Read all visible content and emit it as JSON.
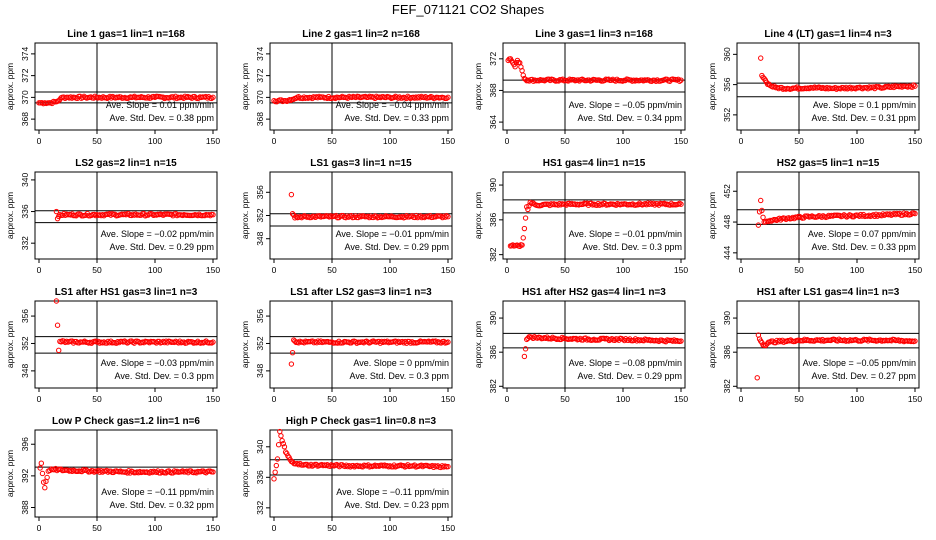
{
  "figure": {
    "title": "FEF_071121  CO2 Shapes"
  },
  "chart_data": [
    {
      "type": "scatter",
      "title": "Line 1 gas=1 lin=1 n=168",
      "ylabel": "approx. ppm",
      "xlim": [
        0,
        150
      ],
      "ylim": [
        367,
        375
      ],
      "yticks": [
        368,
        370,
        372,
        374
      ],
      "xticks": [
        0,
        50,
        100,
        150
      ],
      "ref_lines": [
        370.5,
        369.5
      ],
      "slope_text": "Ave. Slope =  0.01  ppm/min",
      "sd_text": "Ave. Std. Dev. =  0.38  ppm",
      "points": [
        [
          0,
          369.5
        ],
        [
          5,
          369.5
        ],
        [
          10,
          369.5
        ],
        [
          15,
          369.6
        ],
        [
          18,
          369.8
        ],
        [
          20,
          370
        ],
        [
          25,
          370
        ],
        [
          40,
          370
        ],
        [
          60,
          370
        ],
        [
          80,
          370
        ],
        [
          100,
          370
        ],
        [
          120,
          370
        ],
        [
          140,
          370
        ],
        [
          150,
          370
        ]
      ]
    },
    {
      "type": "scatter",
      "title": "Line 2 gas=1 lin=2 n=168",
      "ylabel": "approx. ppm",
      "xlim": [
        0,
        150
      ],
      "ylim": [
        367,
        375
      ],
      "yticks": [
        368,
        370,
        372,
        374
      ],
      "xticks": [
        0,
        50,
        100,
        150
      ],
      "ref_lines": [
        370.5,
        369.5
      ],
      "slope_text": "Ave. Slope = −0.04  ppm/min",
      "sd_text": "Ave. Std. Dev. =  0.33  ppm",
      "points": [
        [
          0,
          369.7
        ],
        [
          10,
          369.7
        ],
        [
          18,
          369.9
        ],
        [
          20,
          370
        ],
        [
          40,
          370
        ],
        [
          60,
          370
        ],
        [
          80,
          370
        ],
        [
          100,
          370
        ],
        [
          120,
          370
        ],
        [
          140,
          370
        ],
        [
          150,
          370
        ]
      ]
    },
    {
      "type": "scatter",
      "title": "Line 3 gas=1 lin=3 n=168",
      "ylabel": "approx. ppm",
      "xlim": [
        0,
        150
      ],
      "ylim": [
        363,
        374
      ],
      "yticks": [
        364,
        368,
        372
      ],
      "xticks": [
        0,
        50,
        100,
        150
      ],
      "ref_lines": [
        369.3,
        367.8
      ],
      "slope_text": "Ave. Slope = −0.05  ppm/min",
      "sd_text": "Ave. Std. Dev. =  0.34  ppm",
      "points": [
        [
          1,
          371.8
        ],
        [
          3,
          372
        ],
        [
          5,
          371.5
        ],
        [
          7,
          371
        ],
        [
          9,
          371.8
        ],
        [
          11,
          371.5
        ],
        [
          13,
          370.5
        ],
        [
          15,
          369.5
        ],
        [
          18,
          369.3
        ],
        [
          30,
          369.3
        ],
        [
          60,
          369.3
        ],
        [
          90,
          369.3
        ],
        [
          120,
          369.3
        ],
        [
          150,
          369.3
        ]
      ]
    },
    {
      "type": "scatter",
      "title": "Line 4 (LT) gas=1 lin=4 n=3",
      "ylabel": "approx. ppm",
      "xlim": [
        0,
        150
      ],
      "ylim": [
        350,
        361.5
      ],
      "yticks": [
        352,
        356,
        360
      ],
      "xticks": [
        0,
        50,
        100,
        150
      ],
      "ref_lines": [
        356.2,
        354.4
      ],
      "slope_text": "Ave. Slope =  0.1  ppm/min",
      "sd_text": "Ave. Std. Dev. =  0.31  ppm",
      "points": [
        [
          17,
          359.5
        ],
        [
          18,
          357.2
        ],
        [
          20,
          356.8
        ],
        [
          22,
          356.3
        ],
        [
          25,
          355.9
        ],
        [
          30,
          355.6
        ],
        [
          40,
          355.5
        ],
        [
          60,
          355.6
        ],
        [
          80,
          355.5
        ],
        [
          100,
          355.6
        ],
        [
          120,
          355.6
        ],
        [
          140,
          355.8
        ],
        [
          150,
          355.8
        ]
      ]
    },
    {
      "type": "scatter",
      "title": "LS2 gas=2 lin=1 n=15",
      "ylabel": "approx. ppm",
      "xlim": [
        0,
        150
      ],
      "ylim": [
        330,
        341
      ],
      "yticks": [
        332,
        336,
        340
      ],
      "xticks": [
        0,
        50,
        100,
        150
      ],
      "ref_lines": [
        336.1,
        334.6
      ],
      "slope_text": "Ave. Slope = −0.02  ppm/min",
      "sd_text": "Ave. Std. Dev. =  0.29  ppm",
      "points": [
        [
          15,
          336
        ],
        [
          16,
          335.1
        ],
        [
          18,
          335.6
        ],
        [
          25,
          335.6
        ],
        [
          50,
          335.6
        ],
        [
          75,
          335.6
        ],
        [
          100,
          335.6
        ],
        [
          125,
          335.6
        ],
        [
          150,
          335.6
        ]
      ]
    },
    {
      "type": "scatter",
      "title": "LS1 gas=3 lin=1 n=15",
      "ylabel": "approx. ppm",
      "xlim": [
        0,
        150
      ],
      "ylim": [
        344.5,
        359.5
      ],
      "yticks": [
        348,
        352,
        356
      ],
      "xticks": [
        0,
        50,
        100,
        150
      ],
      "ref_lines": [
        352.3,
        350.2
      ],
      "slope_text": "Ave. Slope = −0.01  ppm/min",
      "sd_text": "Ave. Std. Dev. =  0.29  ppm",
      "points": [
        [
          15,
          355.6
        ],
        [
          16,
          352.3
        ],
        [
          18,
          351.6
        ],
        [
          25,
          351.8
        ],
        [
          50,
          351.8
        ],
        [
          75,
          351.8
        ],
        [
          100,
          351.8
        ],
        [
          125,
          351.8
        ],
        [
          150,
          351.8
        ]
      ]
    },
    {
      "type": "scatter",
      "title": "HS1 gas=4 lin=1 n=15",
      "ylabel": "approx. ppm",
      "xlim": [
        0,
        150
      ],
      "ylim": [
        381.5,
        391.5
      ],
      "yticks": [
        382,
        386,
        390
      ],
      "xticks": [
        0,
        50,
        100,
        150
      ],
      "ref_lines": [
        388.3,
        386.8
      ],
      "slope_text": "Ave. Slope = −0.01  ppm/min",
      "sd_text": "Ave. Std. Dev. =  0.3  ppm",
      "points": [
        [
          3,
          383
        ],
        [
          6,
          383
        ],
        [
          10,
          383
        ],
        [
          13,
          383.1
        ],
        [
          15,
          385
        ],
        [
          17,
          387.5
        ],
        [
          18,
          387.2
        ],
        [
          20,
          388
        ],
        [
          25,
          387.7
        ],
        [
          50,
          387.8
        ],
        [
          75,
          387.8
        ],
        [
          100,
          387.8
        ],
        [
          125,
          387.8
        ],
        [
          150,
          387.8
        ]
      ]
    },
    {
      "type": "scatter",
      "title": "HS2 gas=5 lin=1 n=15",
      "ylabel": "approx. ppm",
      "xlim": [
        0,
        150
      ],
      "ylim": [
        443.2,
        454.5
      ],
      "yticks": [
        444,
        448,
        452
      ],
      "xticks": [
        0,
        50,
        100,
        150
      ],
      "ref_lines": [
        449.6,
        447.7
      ],
      "slope_text": "Ave. Slope =  0.07  ppm/min",
      "sd_text": "Ave. Std. Dev. =  0.33  ppm",
      "points": [
        [
          15,
          447.6
        ],
        [
          17,
          450.8
        ],
        [
          18,
          449.5
        ],
        [
          20,
          448
        ],
        [
          25,
          448.2
        ],
        [
          40,
          448.5
        ],
        [
          60,
          448.7
        ],
        [
          90,
          448.8
        ],
        [
          120,
          448.9
        ],
        [
          150,
          449.1
        ]
      ]
    },
    {
      "type": "scatter",
      "title": "LS1 after HS1 gas=3 lin=1 n=3",
      "ylabel": "approx. ppm",
      "xlim": [
        0,
        150
      ],
      "ylim": [
        345.5,
        358.2
      ],
      "yticks": [
        348,
        352,
        356
      ],
      "xticks": [
        0,
        50,
        100,
        150
      ],
      "ref_lines": [
        353,
        350.6
      ],
      "slope_text": "Ave. Slope = −0.03  ppm/min",
      "sd_text": "Ave. Std. Dev. =  0.3  ppm",
      "points": [
        [
          15,
          358.2
        ],
        [
          17,
          351
        ],
        [
          18,
          352.3
        ],
        [
          25,
          352.2
        ],
        [
          50,
          352.2
        ],
        [
          75,
          352.2
        ],
        [
          100,
          352.2
        ],
        [
          125,
          352.2
        ],
        [
          150,
          352.2
        ]
      ]
    },
    {
      "type": "scatter",
      "title": "LS1 after LS2 gas=3 lin=1 n=3",
      "ylabel": "approx. ppm",
      "xlim": [
        0,
        150
      ],
      "ylim": [
        345.5,
        358.2
      ],
      "yticks": [
        348,
        352,
        356
      ],
      "xticks": [
        0,
        50,
        100,
        150
      ],
      "ref_lines": [
        353,
        350.6
      ],
      "slope_text": "Ave. Slope =  0  ppm/min",
      "sd_text": "Ave. Std. Dev. =  0.3  ppm",
      "points": [
        [
          15,
          349
        ],
        [
          17,
          352.5
        ],
        [
          20,
          352.2
        ],
        [
          50,
          352.2
        ],
        [
          75,
          352.2
        ],
        [
          100,
          352.2
        ],
        [
          125,
          352.2
        ],
        [
          150,
          352.2
        ]
      ]
    },
    {
      "type": "scatter",
      "title": "HS1 after HS2 gas=4 lin=1 n=3",
      "ylabel": "approx. ppm",
      "xlim": [
        0,
        150
      ],
      "ylim": [
        381.8,
        392
      ],
      "yticks": [
        382,
        386,
        390
      ],
      "xticks": [
        0,
        50,
        100,
        150
      ],
      "ref_lines": [
        388.2,
        386.5
      ],
      "slope_text": "Ave. Slope = −0.08  ppm/min",
      "sd_text": "Ave. Std. Dev. =  0.29  ppm",
      "points": [
        [
          15,
          385.5
        ],
        [
          17,
          387.5
        ],
        [
          20,
          387.8
        ],
        [
          25,
          387.7
        ],
        [
          50,
          387.6
        ],
        [
          75,
          387.5
        ],
        [
          100,
          387.5
        ],
        [
          125,
          387.4
        ],
        [
          150,
          387.3
        ]
      ]
    },
    {
      "type": "scatter",
      "title": "HS1 after LS1 gas=4 lin=1 n=3",
      "ylabel": "approx. ppm",
      "xlim": [
        0,
        150
      ],
      "ylim": [
        381.8,
        392
      ],
      "yticks": [
        382,
        386,
        390
      ],
      "xticks": [
        0,
        50,
        100,
        150
      ],
      "ref_lines": [
        388.2,
        386.5
      ],
      "slope_text": "Ave. Slope = −0.05  ppm/min",
      "sd_text": "Ave. Std. Dev. =  0.27  ppm",
      "points": [
        [
          14,
          383
        ],
        [
          15,
          388
        ],
        [
          17,
          387.3
        ],
        [
          20,
          386.8
        ],
        [
          25,
          387.2
        ],
        [
          50,
          387.4
        ],
        [
          75,
          387.4
        ],
        [
          100,
          387.4
        ],
        [
          125,
          387.4
        ],
        [
          150,
          387.3
        ]
      ]
    },
    {
      "type": "scatter",
      "title": "Low P Check gas=1.2 lin=1 n=6",
      "ylabel": "approx. ppm",
      "xlim": [
        0,
        150
      ],
      "ylim": [
        386.8,
        397.8
      ],
      "yticks": [
        388,
        392,
        396
      ],
      "xticks": [
        0,
        50,
        100,
        150
      ],
      "ref_lines": [
        393.1
      ],
      "slope_text": "Ave. Slope = −0.11  ppm/min",
      "sd_text": "Ave. Std. Dev. =  0.32  ppm",
      "points": [
        [
          1,
          393
        ],
        [
          2,
          393.6
        ],
        [
          4,
          391.2
        ],
        [
          5,
          390.5
        ],
        [
          8,
          392.6
        ],
        [
          12,
          392.8
        ],
        [
          25,
          392.7
        ],
        [
          50,
          392.6
        ],
        [
          75,
          392.5
        ],
        [
          100,
          392.5
        ],
        [
          125,
          392.5
        ],
        [
          150,
          392.5
        ]
      ]
    },
    {
      "type": "scatter",
      "title": "High P Check gas=1 lin=0.8 n=3",
      "ylabel": "approx. ppm",
      "xlim": [
        0,
        150
      ],
      "ylim": [
        330.8,
        342.2
      ],
      "yticks": [
        332,
        336,
        340
      ],
      "xticks": [
        0,
        50,
        100,
        150
      ],
      "ref_lines": [
        338.3,
        336.3
      ],
      "slope_text": "Ave. Slope = −0.11  ppm/min",
      "sd_text": "Ave. Std. Dev. =  0.23  ppm",
      "points": [
        [
          0,
          335.8
        ],
        [
          3,
          338.4
        ],
        [
          5,
          342
        ],
        [
          7,
          340.8
        ],
        [
          9,
          340
        ],
        [
          10,
          339.3
        ],
        [
          12,
          338.8
        ],
        [
          14,
          338.3
        ],
        [
          16,
          338
        ],
        [
          20,
          337.8
        ],
        [
          25,
          337.6
        ],
        [
          40,
          337.6
        ],
        [
          60,
          337.5
        ],
        [
          80,
          337.5
        ],
        [
          100,
          337.5
        ],
        [
          120,
          337.5
        ],
        [
          140,
          337.4
        ],
        [
          150,
          337.4
        ]
      ]
    }
  ]
}
